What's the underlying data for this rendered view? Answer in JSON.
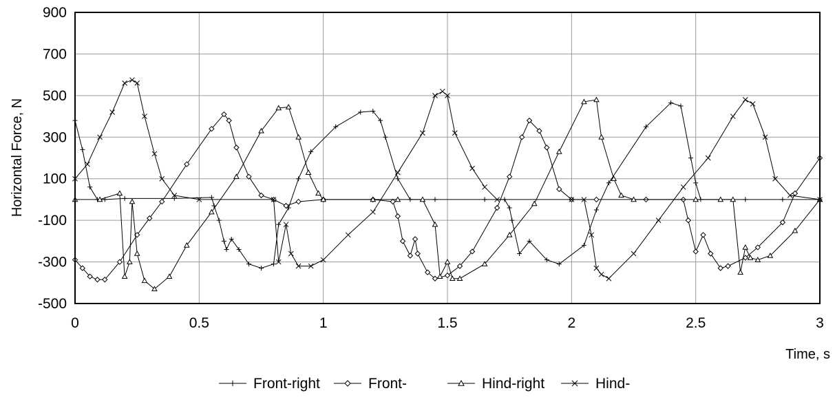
{
  "chart_data": {
    "type": "line",
    "title": "",
    "xlabel": "Time, s",
    "ylabel": "Horizontal Force, N",
    "xlim": [
      0,
      3
    ],
    "ylim": [
      -500,
      900
    ],
    "xticks": [
      0,
      0.5,
      1,
      1.5,
      2,
      2.5,
      3
    ],
    "xtick_labels": [
      "0",
      "0.5",
      "1",
      "1.5",
      "2",
      "2.5",
      "3"
    ],
    "yticks": [
      -500,
      -300,
      -100,
      100,
      300,
      500,
      700,
      900
    ],
    "ytick_labels": [
      "-500",
      "-300",
      "-100",
      "100",
      "300",
      "500",
      "700",
      "900"
    ],
    "grid": true,
    "legend_position": "bottom",
    "series": [
      {
        "name": "Front-right",
        "marker": "plus",
        "points": [
          [
            0,
            380
          ],
          [
            0.03,
            240
          ],
          [
            0.06,
            60
          ],
          [
            0.09,
            0
          ],
          [
            0.12,
            0
          ],
          [
            0.2,
            5
          ],
          [
            0.4,
            5
          ],
          [
            0.55,
            10
          ],
          [
            0.56,
            -30
          ],
          [
            0.58,
            -100
          ],
          [
            0.6,
            -200
          ],
          [
            0.61,
            -240
          ],
          [
            0.63,
            -190
          ],
          [
            0.66,
            -240
          ],
          [
            0.7,
            -310
          ],
          [
            0.75,
            -330
          ],
          [
            0.8,
            -310
          ],
          [
            0.82,
            -120
          ],
          [
            0.86,
            -40
          ],
          [
            0.9,
            100
          ],
          [
            0.95,
            230
          ],
          [
            1.05,
            350
          ],
          [
            1.15,
            420
          ],
          [
            1.2,
            425
          ],
          [
            1.23,
            380
          ],
          [
            1.25,
            300
          ],
          [
            1.3,
            100
          ],
          [
            1.35,
            0
          ],
          [
            1.45,
            0
          ],
          [
            1.65,
            0
          ],
          [
            1.73,
            0
          ],
          [
            1.75,
            -40
          ],
          [
            1.76,
            -100
          ],
          [
            1.79,
            -260
          ],
          [
            1.83,
            -200
          ],
          [
            1.9,
            -290
          ],
          [
            1.95,
            -310
          ],
          [
            2.05,
            -220
          ],
          [
            2.1,
            -50
          ],
          [
            2.15,
            80
          ],
          [
            2.3,
            350
          ],
          [
            2.4,
            465
          ],
          [
            2.44,
            450
          ],
          [
            2.48,
            200
          ],
          [
            2.5,
            80
          ],
          [
            2.52,
            0
          ],
          [
            2.7,
            0
          ],
          [
            2.85,
            0
          ],
          [
            3,
            0
          ]
        ]
      },
      {
        "name": "Front-",
        "marker": "diamond",
        "points": [
          [
            0,
            -290
          ],
          [
            0.03,
            -330
          ],
          [
            0.06,
            -370
          ],
          [
            0.09,
            -385
          ],
          [
            0.12,
            -385
          ],
          [
            0.18,
            -300
          ],
          [
            0.25,
            -170
          ],
          [
            0.3,
            -90
          ],
          [
            0.35,
            -10
          ],
          [
            0.45,
            170
          ],
          [
            0.55,
            340
          ],
          [
            0.6,
            410
          ],
          [
            0.62,
            380
          ],
          [
            0.65,
            250
          ],
          [
            0.7,
            110
          ],
          [
            0.75,
            20
          ],
          [
            0.8,
            0
          ],
          [
            0.85,
            -30
          ],
          [
            0.9,
            -10
          ],
          [
            1,
            0
          ],
          [
            1.2,
            0
          ],
          [
            1.28,
            -10
          ],
          [
            1.3,
            -80
          ],
          [
            1.32,
            -200
          ],
          [
            1.35,
            -270
          ],
          [
            1.37,
            -190
          ],
          [
            1.38,
            -260
          ],
          [
            1.42,
            -350
          ],
          [
            1.45,
            -380
          ],
          [
            1.5,
            -365
          ],
          [
            1.55,
            -320
          ],
          [
            1.6,
            -250
          ],
          [
            1.7,
            -40
          ],
          [
            1.75,
            110
          ],
          [
            1.8,
            300
          ],
          [
            1.83,
            380
          ],
          [
            1.87,
            330
          ],
          [
            1.9,
            250
          ],
          [
            1.95,
            50
          ],
          [
            2,
            0
          ],
          [
            2.1,
            0
          ],
          [
            2.3,
            0
          ],
          [
            2.45,
            0
          ],
          [
            2.47,
            -100
          ],
          [
            2.5,
            -250
          ],
          [
            2.53,
            -170
          ],
          [
            2.56,
            -260
          ],
          [
            2.6,
            -330
          ],
          [
            2.63,
            -320
          ],
          [
            2.7,
            -280
          ],
          [
            2.75,
            -230
          ],
          [
            2.85,
            -110
          ],
          [
            2.9,
            30
          ],
          [
            3,
            200
          ]
        ]
      },
      {
        "name": "Hind-right",
        "marker": "triangle",
        "points": [
          [
            0,
            0
          ],
          [
            0.1,
            0
          ],
          [
            0.18,
            30
          ],
          [
            0.2,
            -370
          ],
          [
            0.22,
            -300
          ],
          [
            0.23,
            -10
          ],
          [
            0.25,
            -260
          ],
          [
            0.28,
            -390
          ],
          [
            0.32,
            -430
          ],
          [
            0.38,
            -370
          ],
          [
            0.45,
            -220
          ],
          [
            0.55,
            -60
          ],
          [
            0.65,
            110
          ],
          [
            0.75,
            330
          ],
          [
            0.82,
            440
          ],
          [
            0.86,
            445
          ],
          [
            0.9,
            300
          ],
          [
            0.94,
            130
          ],
          [
            0.98,
            30
          ],
          [
            1,
            0
          ],
          [
            1.2,
            0
          ],
          [
            1.3,
            0
          ],
          [
            1.4,
            0
          ],
          [
            1.45,
            -120
          ],
          [
            1.47,
            -370
          ],
          [
            1.5,
            -300
          ],
          [
            1.52,
            -380
          ],
          [
            1.55,
            -380
          ],
          [
            1.65,
            -310
          ],
          [
            1.75,
            -170
          ],
          [
            1.85,
            -20
          ],
          [
            1.95,
            230
          ],
          [
            2.05,
            470
          ],
          [
            2.1,
            480
          ],
          [
            2.12,
            300
          ],
          [
            2.17,
            100
          ],
          [
            2.2,
            20
          ],
          [
            2.25,
            0
          ],
          [
            2.5,
            0
          ],
          [
            2.6,
            0
          ],
          [
            2.65,
            0
          ],
          [
            2.68,
            -350
          ],
          [
            2.7,
            -230
          ],
          [
            2.72,
            -280
          ],
          [
            2.75,
            -290
          ],
          [
            2.8,
            -270
          ],
          [
            2.9,
            -150
          ],
          [
            3,
            0
          ]
        ]
      },
      {
        "name": "Hind-",
        "marker": "cross",
        "points": [
          [
            0,
            100
          ],
          [
            0.05,
            170
          ],
          [
            0.1,
            300
          ],
          [
            0.15,
            420
          ],
          [
            0.2,
            560
          ],
          [
            0.23,
            575
          ],
          [
            0.25,
            560
          ],
          [
            0.28,
            400
          ],
          [
            0.32,
            220
          ],
          [
            0.35,
            100
          ],
          [
            0.4,
            20
          ],
          [
            0.5,
            0
          ],
          [
            0.8,
            0
          ],
          [
            0.82,
            -300
          ],
          [
            0.85,
            -120
          ],
          [
            0.87,
            -260
          ],
          [
            0.9,
            -320
          ],
          [
            0.95,
            -320
          ],
          [
            1,
            -290
          ],
          [
            1.1,
            -170
          ],
          [
            1.2,
            -60
          ],
          [
            1.3,
            130
          ],
          [
            1.4,
            320
          ],
          [
            1.45,
            500
          ],
          [
            1.48,
            520
          ],
          [
            1.5,
            500
          ],
          [
            1.53,
            320
          ],
          [
            1.6,
            150
          ],
          [
            1.65,
            60
          ],
          [
            1.7,
            0
          ],
          [
            2.0,
            0
          ],
          [
            2.05,
            0
          ],
          [
            2.08,
            -170
          ],
          [
            2.1,
            -330
          ],
          [
            2.12,
            -360
          ],
          [
            2.15,
            -380
          ],
          [
            2.25,
            -260
          ],
          [
            2.35,
            -100
          ],
          [
            2.45,
            60
          ],
          [
            2.55,
            200
          ],
          [
            2.65,
            400
          ],
          [
            2.7,
            480
          ],
          [
            2.73,
            460
          ],
          [
            2.78,
            300
          ],
          [
            2.82,
            100
          ],
          [
            2.88,
            20
          ],
          [
            3,
            0
          ]
        ]
      }
    ]
  }
}
